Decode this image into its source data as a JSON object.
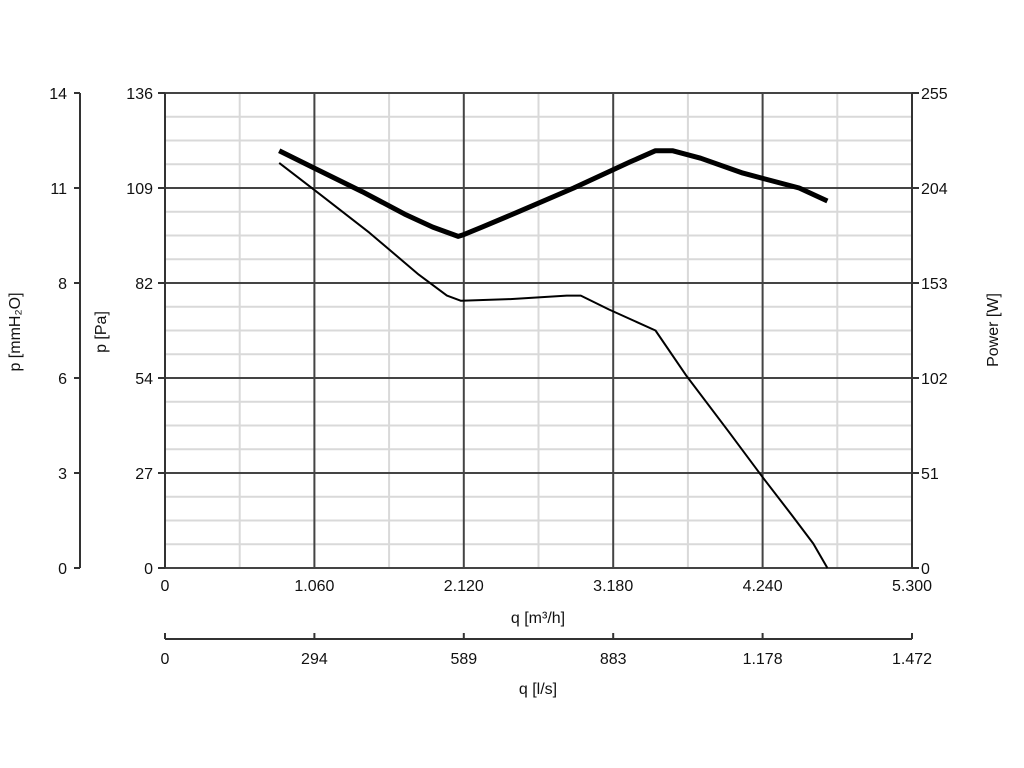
{
  "chart_data": {
    "type": "line",
    "grid": true,
    "x_axis": {
      "label": "q [m³/h]",
      "range": [
        0,
        5300
      ],
      "tick_values": [
        0,
        1060,
        2120,
        3180,
        4240,
        5300
      ],
      "tick_labels": [
        "0",
        "1.060",
        "2.120",
        "3.180",
        "4.240",
        "5.300"
      ]
    },
    "x2_axis": {
      "label": "q [l/s]",
      "tick_labels": [
        "0",
        "294",
        "589",
        "883",
        "1.178",
        "1.472"
      ]
    },
    "y_axis_left": {
      "label": "p [Pa]",
      "range": [
        0,
        136
      ],
      "tick_labels": [
        "0",
        "27",
        "54",
        "82",
        "109",
        "136"
      ]
    },
    "y_axis_left_outer": {
      "label": "p [mmH₂O]",
      "tick_labels": [
        "0",
        "3",
        "6",
        "8",
        "11",
        "14"
      ]
    },
    "y_axis_right": {
      "label": "Power [W]",
      "range": [
        0,
        255
      ],
      "tick_labels": [
        "0",
        "51",
        "102",
        "153",
        "204",
        "255"
      ]
    },
    "series": [
      {
        "axis": "power",
        "style": "thick",
        "x": [
          810,
          1050,
          1400,
          1700,
          1900,
          2080,
          2120,
          2250,
          2500,
          2900,
          3300,
          3480,
          3600,
          3800,
          4100,
          4500,
          4700
        ],
        "y": [
          224,
          215,
          202,
          190,
          183,
          178,
          179,
          183,
          191,
          204,
          218,
          224,
          224,
          220,
          212,
          204,
          197
        ]
      },
      {
        "axis": "pressure",
        "style": "thin",
        "x": [
          810,
          1100,
          1450,
          1800,
          2000,
          2100,
          2450,
          2850,
          2950,
          3150,
          3480,
          3700,
          4000,
          4240,
          4450,
          4600,
          4700
        ],
        "y": [
          116,
          107,
          96,
          84,
          78,
          76.5,
          77,
          78,
          78,
          74,
          68,
          55,
          39,
          26,
          15,
          7,
          0
        ]
      }
    ]
  }
}
